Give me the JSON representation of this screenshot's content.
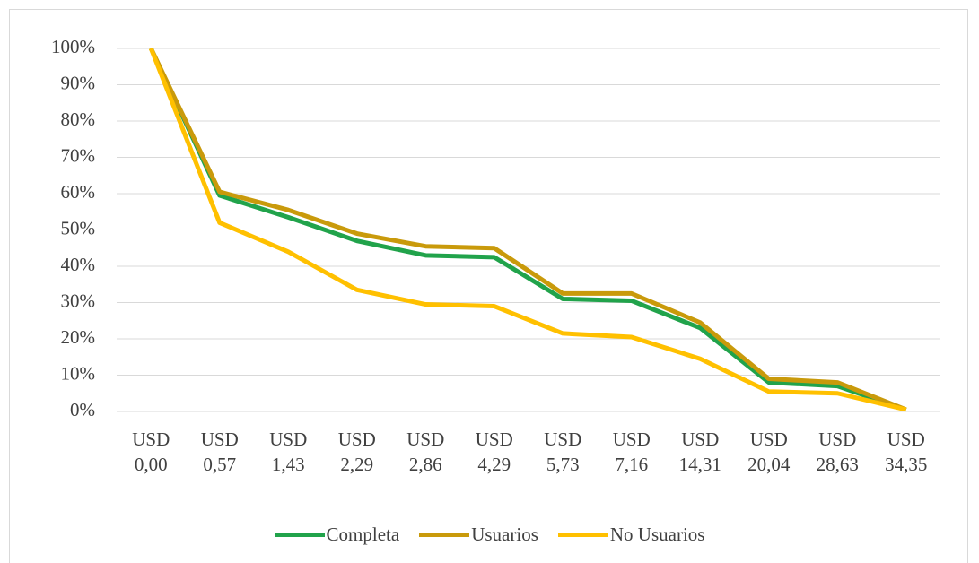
{
  "chart_data": {
    "type": "line",
    "categories": [
      "USD 0,00",
      "USD 0,57",
      "USD 1,43",
      "USD 2,29",
      "USD 2,86",
      "USD 4,29",
      "USD 5,73",
      "USD 7,16",
      "USD 14,31",
      "USD 20,04",
      "USD 28,63",
      "USD 34,35"
    ],
    "series": [
      {
        "name": "Completa",
        "color": "#21a34b",
        "values": [
          100,
          59.5,
          53.5,
          47,
          43,
          42.5,
          31,
          30.5,
          23,
          8,
          7,
          0.5
        ]
      },
      {
        "name": "Usuarios",
        "color": "#c99a0b",
        "values": [
          100,
          60.5,
          55.5,
          49,
          45.5,
          45,
          32.5,
          32.5,
          24.5,
          9,
          8,
          0.5
        ]
      },
      {
        "name": "No Usuarios",
        "color": "#ffc000",
        "values": [
          100,
          52,
          44,
          33.5,
          29.5,
          29,
          21.5,
          20.5,
          14.5,
          5.5,
          5,
          0.5
        ]
      }
    ],
    "ylim": [
      0,
      100
    ],
    "yticks": [
      {
        "value": 0,
        "label": "0%"
      },
      {
        "value": 10,
        "label": "10%"
      },
      {
        "value": 20,
        "label": "20%"
      },
      {
        "value": 30,
        "label": "30%"
      },
      {
        "value": 40,
        "label": "40%"
      },
      {
        "value": 50,
        "label": "50%"
      },
      {
        "value": 60,
        "label": "60%"
      },
      {
        "value": 70,
        "label": "70%"
      },
      {
        "value": 80,
        "label": "80%"
      },
      {
        "value": 90,
        "label": "90%"
      },
      {
        "value": 100,
        "label": "100%"
      }
    ],
    "grid": true,
    "legend": "bottom"
  }
}
